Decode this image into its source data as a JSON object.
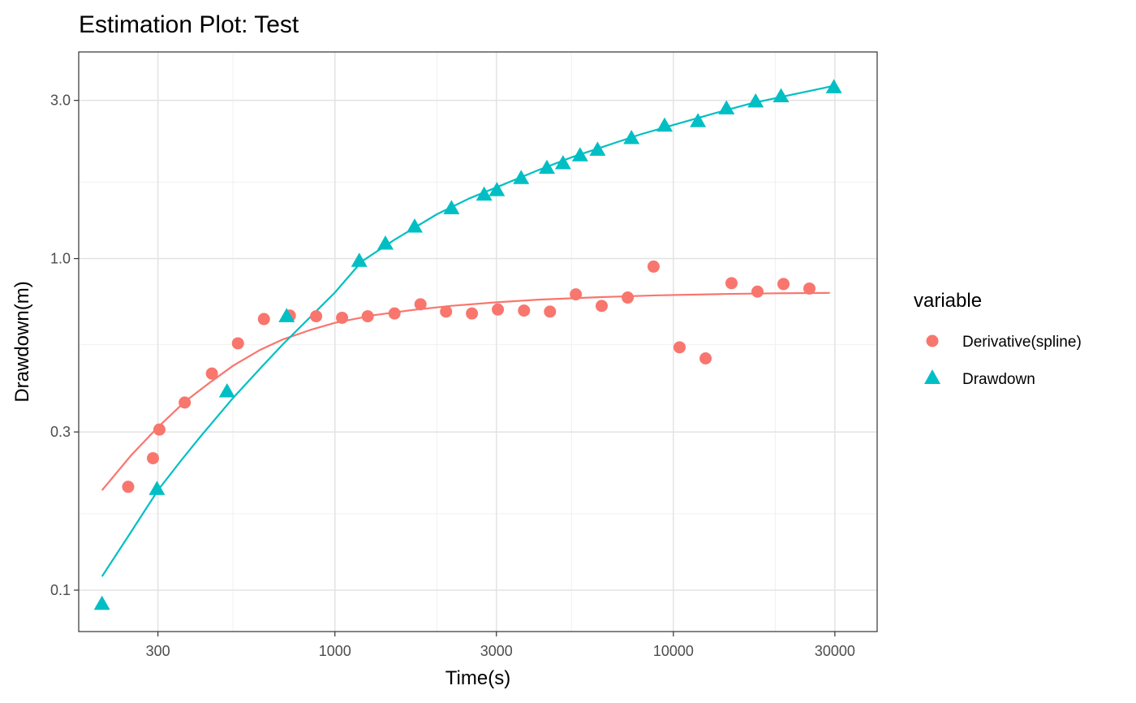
{
  "chart_data": {
    "type": "scatter",
    "title": "Estimation Plot: Test",
    "xlabel": "Time(s)",
    "ylabel": "Drawdown(m)",
    "x_scale": "log",
    "y_scale": "log",
    "xlim": [
      175,
      40000
    ],
    "ylim": [
      0.075,
      4.2
    ],
    "x_ticks": [
      300,
      1000,
      3000,
      10000,
      30000
    ],
    "x_tick_labels": [
      "300",
      "1000",
      "3000",
      "10000",
      "30000"
    ],
    "x_minor_ticks": [
      500,
      2000,
      5000,
      20000
    ],
    "y_ticks": [
      0.1,
      0.3,
      1.0,
      3.0
    ],
    "y_tick_labels": [
      "0.1",
      "0.3",
      "1.0",
      "3.0"
    ],
    "y_minor_ticks": [
      0.17,
      0.55,
      1.7
    ],
    "grid": true,
    "legend": {
      "title": "variable",
      "position": "right",
      "entries": [
        {
          "label": "Derivative(spline)",
          "shape": "circle",
          "color": "#F8766D"
        },
        {
          "label": "Drawdown",
          "shape": "triangle",
          "color": "#00BFC4"
        }
      ]
    },
    "series": [
      {
        "name": "Derivative(spline)",
        "color": "#F8766D",
        "shape": "circle",
        "points": [
          [
            245,
            0.205
          ],
          [
            290,
            0.25
          ],
          [
            303,
            0.305
          ],
          [
            360,
            0.368
          ],
          [
            433,
            0.45
          ],
          [
            517,
            0.555
          ],
          [
            617,
            0.657
          ],
          [
            736,
            0.673
          ],
          [
            880,
            0.67
          ],
          [
            1050,
            0.663
          ],
          [
            1250,
            0.67
          ],
          [
            1500,
            0.683
          ],
          [
            1790,
            0.728
          ],
          [
            2130,
            0.692
          ],
          [
            2540,
            0.683
          ],
          [
            3030,
            0.702
          ],
          [
            3620,
            0.697
          ],
          [
            4320,
            0.692
          ],
          [
            5150,
            0.78
          ],
          [
            6140,
            0.72
          ],
          [
            7330,
            0.763
          ],
          [
            8740,
            0.946
          ],
          [
            10430,
            0.54
          ],
          [
            12450,
            0.5
          ],
          [
            14850,
            0.843
          ],
          [
            17720,
            0.795
          ],
          [
            21150,
            0.838
          ],
          [
            25230,
            0.812
          ]
        ],
        "fit": [
          [
            205,
            0.2
          ],
          [
            250,
            0.255
          ],
          [
            300,
            0.31
          ],
          [
            360,
            0.37
          ],
          [
            430,
            0.425
          ],
          [
            500,
            0.475
          ],
          [
            600,
            0.53
          ],
          [
            700,
            0.57
          ],
          [
            850,
            0.61
          ],
          [
            1000,
            0.64
          ],
          [
            1300,
            0.675
          ],
          [
            1700,
            0.7
          ],
          [
            2200,
            0.72
          ],
          [
            3000,
            0.738
          ],
          [
            4000,
            0.752
          ],
          [
            6000,
            0.765
          ],
          [
            9000,
            0.775
          ],
          [
            14000,
            0.782
          ],
          [
            20000,
            0.786
          ],
          [
            29000,
            0.788
          ]
        ]
      },
      {
        "name": "Drawdown",
        "color": "#00BFC4",
        "shape": "triangle",
        "points": [
          [
            205,
            0.091
          ],
          [
            298,
            0.202
          ],
          [
            480,
            0.398
          ],
          [
            720,
            0.671
          ],
          [
            1180,
            0.985
          ],
          [
            1410,
            1.11
          ],
          [
            1720,
            1.25
          ],
          [
            2210,
            1.42
          ],
          [
            2760,
            1.56
          ],
          [
            3010,
            1.61
          ],
          [
            3550,
            1.75
          ],
          [
            4230,
            1.88
          ],
          [
            4720,
            1.94
          ],
          [
            5300,
            2.05
          ],
          [
            5970,
            2.13
          ],
          [
            7520,
            2.31
          ],
          [
            9420,
            2.52
          ],
          [
            11820,
            2.6
          ],
          [
            14350,
            2.84
          ],
          [
            17500,
            2.98
          ],
          [
            20800,
            3.09
          ],
          [
            29800,
            3.29
          ]
        ],
        "fit": [
          [
            205,
            0.11
          ],
          [
            250,
            0.15
          ],
          [
            300,
            0.2
          ],
          [
            350,
            0.245
          ],
          [
            400,
            0.29
          ],
          [
            500,
            0.38
          ],
          [
            600,
            0.465
          ],
          [
            700,
            0.55
          ],
          [
            850,
            0.67
          ],
          [
            1000,
            0.79
          ],
          [
            1200,
            0.98
          ],
          [
            1500,
            1.14
          ],
          [
            2000,
            1.36
          ],
          [
            2500,
            1.52
          ],
          [
            3000,
            1.64
          ],
          [
            4000,
            1.85
          ],
          [
            5000,
            2.02
          ],
          [
            6000,
            2.15
          ],
          [
            8000,
            2.37
          ],
          [
            10000,
            2.53
          ],
          [
            13000,
            2.73
          ],
          [
            17000,
            2.94
          ],
          [
            22000,
            3.11
          ],
          [
            29800,
            3.32
          ]
        ]
      }
    ]
  }
}
